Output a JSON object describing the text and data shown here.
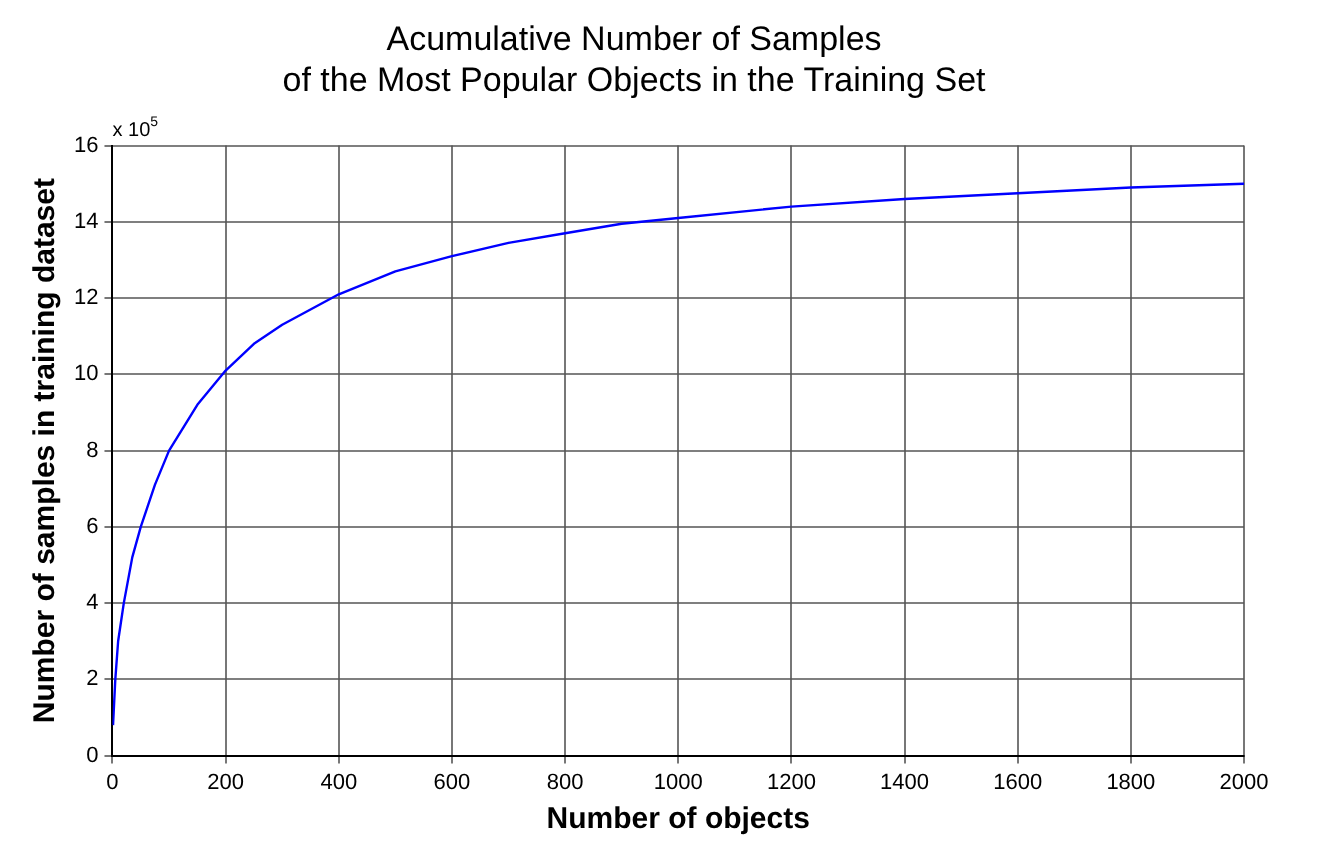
{
  "chart_data": {
    "type": "line",
    "title": "Acumulative Number of Samples\nof the Most Popular Objects in the Training Set",
    "xlabel": "Number of objects",
    "ylabel": "Number of samples in training dataset",
    "annotations": [
      "x 10$^{5}$"
    ],
    "series": [
      {
        "color": "#0000ff",
        "x": [
          1,
          5,
          10,
          20,
          35,
          50,
          75,
          100,
          150,
          200,
          250,
          300,
          400,
          500,
          600,
          700,
          800,
          900,
          1000,
          1200,
          1400,
          1600,
          1800,
          2000
        ],
        "values": [
          0.8,
          2.0,
          3.0,
          4.0,
          5.2,
          6.0,
          7.1,
          8.0,
          9.2,
          10.1,
          10.8,
          11.3,
          12.1,
          12.7,
          13.1,
          13.45,
          13.7,
          13.95,
          14.1,
          14.4,
          14.6,
          14.75,
          14.9,
          15.0
        ]
      }
    ],
    "xlim": [
      0,
      2000
    ],
    "xticks": [
      0,
      200,
      400,
      600,
      800,
      1000,
      1200,
      1400,
      1600,
      1800,
      2000
    ],
    "ylim": [
      0,
      16
    ],
    "yticks": [
      0,
      2,
      4,
      6,
      8,
      10,
      12,
      14,
      16
    ],
    "grid": true,
    "legend": false,
    "marker": "none",
    "line_style": "solid"
  }
}
